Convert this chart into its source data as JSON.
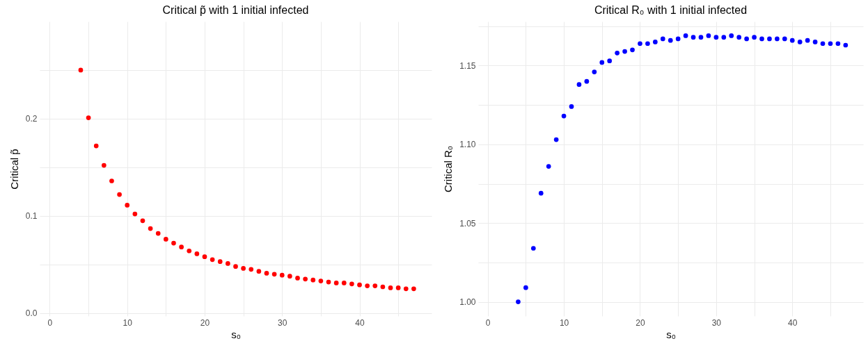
{
  "chart_data": [
    {
      "type": "scatter",
      "title": "Critical p̃ with 1 initial infected",
      "xlabel": "s₀",
      "ylabel": "Critical p̃",
      "x": [
        4,
        5,
        6,
        7,
        8,
        9,
        10,
        11,
        12,
        13,
        14,
        15,
        16,
        17,
        18,
        19,
        20,
        21,
        22,
        23,
        24,
        25,
        26,
        27,
        28,
        29,
        30,
        31,
        32,
        33,
        34,
        35,
        36,
        37,
        38,
        39,
        40,
        41,
        42,
        43,
        44,
        45,
        46,
        47
      ],
      "series": [
        {
          "color": "#ff0000",
          "values": [
            0.25,
            0.201,
            0.172,
            0.152,
            0.136,
            0.122,
            0.111,
            0.102,
            0.095,
            0.087,
            0.082,
            0.076,
            0.072,
            0.068,
            0.064,
            0.061,
            0.058,
            0.055,
            0.053,
            0.051,
            0.048,
            0.046,
            0.045,
            0.043,
            0.041,
            0.04,
            0.039,
            0.038,
            0.036,
            0.035,
            0.034,
            0.033,
            0.032,
            0.031,
            0.031,
            0.03,
            0.029,
            0.028,
            0.028,
            0.027,
            0.026,
            0.026,
            0.025,
            0.025
          ]
        }
      ],
      "xlim": [
        -1.3,
        49.3
      ],
      "ylim": [
        -0.003,
        0.3
      ],
      "xticks": [
        0,
        {
          "value": 5,
          "label": null
        },
        10,
        {
          "value": 15,
          "label": null
        },
        20,
        {
          "value": 25,
          "label": null
        },
        30,
        {
          "value": 35,
          "label": null
        },
        40,
        {
          "value": 45,
          "label": null
        }
      ],
      "yticks": [
        {
          "value": 0,
          "label": "0.0"
        },
        {
          "value": 0.05,
          "label": null
        },
        0.1,
        {
          "value": 0.15,
          "label": null
        },
        0.2,
        {
          "value": 0.25,
          "label": null
        }
      ],
      "grid": true,
      "marker": "circle"
    },
    {
      "type": "scatter",
      "title": "Critical R₀ with 1 initial infected",
      "xlabel": "s₀",
      "ylabel": "Critical R₀",
      "x": [
        4,
        5,
        6,
        7,
        8,
        9,
        10,
        11,
        12,
        13,
        14,
        15,
        16,
        17,
        18,
        19,
        20,
        21,
        22,
        23,
        24,
        25,
        26,
        27,
        28,
        29,
        30,
        31,
        32,
        33,
        34,
        35,
        36,
        37,
        38,
        39,
        40,
        41,
        42,
        43,
        44,
        45,
        46,
        47
      ],
      "series": [
        {
          "color": "#0000ff",
          "values": [
            1.0,
            1.009,
            1.034,
            1.069,
            1.086,
            1.103,
            1.118,
            1.124,
            1.138,
            1.14,
            1.146,
            1.152,
            1.153,
            1.158,
            1.159,
            1.16,
            1.164,
            1.164,
            1.165,
            1.167,
            1.166,
            1.167,
            1.169,
            1.168,
            1.168,
            1.169,
            1.168,
            1.168,
            1.169,
            1.168,
            1.167,
            1.168,
            1.167,
            1.167,
            1.167,
            1.167,
            1.166,
            1.165,
            1.166,
            1.165,
            1.164,
            1.164,
            1.164,
            1.163
          ]
        }
      ],
      "xlim": [
        -1.25,
        49.3
      ],
      "ylim": [
        0.991,
        1.178
      ],
      "xticks": [
        0,
        {
          "value": 5,
          "label": null
        },
        10,
        {
          "value": 15,
          "label": null
        },
        20,
        {
          "value": 25,
          "label": null
        },
        30,
        {
          "value": 35,
          "label": null
        },
        40,
        {
          "value": 45,
          "label": null
        }
      ],
      "yticks": [
        {
          "value": 1,
          "label": "1.00"
        },
        {
          "value": 1.025,
          "label": null
        },
        {
          "value": 1.05,
          "label": "1.05"
        },
        {
          "value": 1.075,
          "label": null
        },
        {
          "value": 1.1,
          "label": "1.10"
        },
        {
          "value": 1.125,
          "label": null
        },
        {
          "value": 1.15,
          "label": "1.15"
        },
        {
          "value": 1.175,
          "label": null
        }
      ],
      "grid": true,
      "marker": "circle"
    }
  ]
}
